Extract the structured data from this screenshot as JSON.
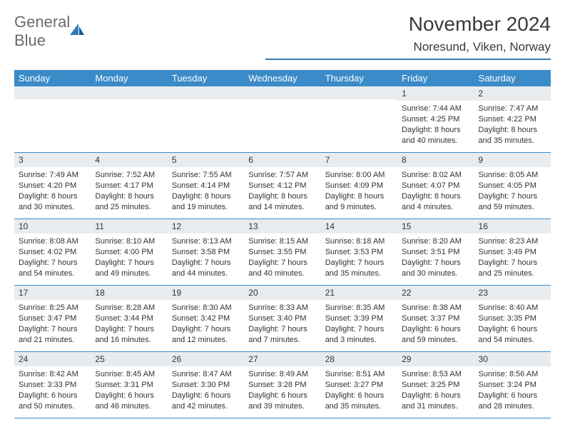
{
  "logo": {
    "text_gray": "General",
    "text_blue": "Blue"
  },
  "header": {
    "month": "November 2024",
    "location": "Noresund, Viken, Norway"
  },
  "colors": {
    "accent": "#3b8bc9",
    "header_gray": "#6b6b6b",
    "header_blue": "#2e7bc0",
    "daynum_bg": "#e8ecef",
    "text": "#333333",
    "bg": "#ffffff"
  },
  "weekdays": [
    "Sunday",
    "Monday",
    "Tuesday",
    "Wednesday",
    "Thursday",
    "Friday",
    "Saturday"
  ],
  "weeks": [
    [
      null,
      null,
      null,
      null,
      null,
      {
        "n": "1",
        "sr": "Sunrise: 7:44 AM",
        "ss": "Sunset: 4:25 PM",
        "dl": "Daylight: 8 hours and 40 minutes."
      },
      {
        "n": "2",
        "sr": "Sunrise: 7:47 AM",
        "ss": "Sunset: 4:22 PM",
        "dl": "Daylight: 8 hours and 35 minutes."
      }
    ],
    [
      {
        "n": "3",
        "sr": "Sunrise: 7:49 AM",
        "ss": "Sunset: 4:20 PM",
        "dl": "Daylight: 8 hours and 30 minutes."
      },
      {
        "n": "4",
        "sr": "Sunrise: 7:52 AM",
        "ss": "Sunset: 4:17 PM",
        "dl": "Daylight: 8 hours and 25 minutes."
      },
      {
        "n": "5",
        "sr": "Sunrise: 7:55 AM",
        "ss": "Sunset: 4:14 PM",
        "dl": "Daylight: 8 hours and 19 minutes."
      },
      {
        "n": "6",
        "sr": "Sunrise: 7:57 AM",
        "ss": "Sunset: 4:12 PM",
        "dl": "Daylight: 8 hours and 14 minutes."
      },
      {
        "n": "7",
        "sr": "Sunrise: 8:00 AM",
        "ss": "Sunset: 4:09 PM",
        "dl": "Daylight: 8 hours and 9 minutes."
      },
      {
        "n": "8",
        "sr": "Sunrise: 8:02 AM",
        "ss": "Sunset: 4:07 PM",
        "dl": "Daylight: 8 hours and 4 minutes."
      },
      {
        "n": "9",
        "sr": "Sunrise: 8:05 AM",
        "ss": "Sunset: 4:05 PM",
        "dl": "Daylight: 7 hours and 59 minutes."
      }
    ],
    [
      {
        "n": "10",
        "sr": "Sunrise: 8:08 AM",
        "ss": "Sunset: 4:02 PM",
        "dl": "Daylight: 7 hours and 54 minutes."
      },
      {
        "n": "11",
        "sr": "Sunrise: 8:10 AM",
        "ss": "Sunset: 4:00 PM",
        "dl": "Daylight: 7 hours and 49 minutes."
      },
      {
        "n": "12",
        "sr": "Sunrise: 8:13 AM",
        "ss": "Sunset: 3:58 PM",
        "dl": "Daylight: 7 hours and 44 minutes."
      },
      {
        "n": "13",
        "sr": "Sunrise: 8:15 AM",
        "ss": "Sunset: 3:55 PM",
        "dl": "Daylight: 7 hours and 40 minutes."
      },
      {
        "n": "14",
        "sr": "Sunrise: 8:18 AM",
        "ss": "Sunset: 3:53 PM",
        "dl": "Daylight: 7 hours and 35 minutes."
      },
      {
        "n": "15",
        "sr": "Sunrise: 8:20 AM",
        "ss": "Sunset: 3:51 PM",
        "dl": "Daylight: 7 hours and 30 minutes."
      },
      {
        "n": "16",
        "sr": "Sunrise: 8:23 AM",
        "ss": "Sunset: 3:49 PM",
        "dl": "Daylight: 7 hours and 25 minutes."
      }
    ],
    [
      {
        "n": "17",
        "sr": "Sunrise: 8:25 AM",
        "ss": "Sunset: 3:47 PM",
        "dl": "Daylight: 7 hours and 21 minutes."
      },
      {
        "n": "18",
        "sr": "Sunrise: 8:28 AM",
        "ss": "Sunset: 3:44 PM",
        "dl": "Daylight: 7 hours and 16 minutes."
      },
      {
        "n": "19",
        "sr": "Sunrise: 8:30 AM",
        "ss": "Sunset: 3:42 PM",
        "dl": "Daylight: 7 hours and 12 minutes."
      },
      {
        "n": "20",
        "sr": "Sunrise: 8:33 AM",
        "ss": "Sunset: 3:40 PM",
        "dl": "Daylight: 7 hours and 7 minutes."
      },
      {
        "n": "21",
        "sr": "Sunrise: 8:35 AM",
        "ss": "Sunset: 3:39 PM",
        "dl": "Daylight: 7 hours and 3 minutes."
      },
      {
        "n": "22",
        "sr": "Sunrise: 8:38 AM",
        "ss": "Sunset: 3:37 PM",
        "dl": "Daylight: 6 hours and 59 minutes."
      },
      {
        "n": "23",
        "sr": "Sunrise: 8:40 AM",
        "ss": "Sunset: 3:35 PM",
        "dl": "Daylight: 6 hours and 54 minutes."
      }
    ],
    [
      {
        "n": "24",
        "sr": "Sunrise: 8:42 AM",
        "ss": "Sunset: 3:33 PM",
        "dl": "Daylight: 6 hours and 50 minutes."
      },
      {
        "n": "25",
        "sr": "Sunrise: 8:45 AM",
        "ss": "Sunset: 3:31 PM",
        "dl": "Daylight: 6 hours and 46 minutes."
      },
      {
        "n": "26",
        "sr": "Sunrise: 8:47 AM",
        "ss": "Sunset: 3:30 PM",
        "dl": "Daylight: 6 hours and 42 minutes."
      },
      {
        "n": "27",
        "sr": "Sunrise: 8:49 AM",
        "ss": "Sunset: 3:28 PM",
        "dl": "Daylight: 6 hours and 39 minutes."
      },
      {
        "n": "28",
        "sr": "Sunrise: 8:51 AM",
        "ss": "Sunset: 3:27 PM",
        "dl": "Daylight: 6 hours and 35 minutes."
      },
      {
        "n": "29",
        "sr": "Sunrise: 8:53 AM",
        "ss": "Sunset: 3:25 PM",
        "dl": "Daylight: 6 hours and 31 minutes."
      },
      {
        "n": "30",
        "sr": "Sunrise: 8:56 AM",
        "ss": "Sunset: 3:24 PM",
        "dl": "Daylight: 6 hours and 28 minutes."
      }
    ]
  ]
}
